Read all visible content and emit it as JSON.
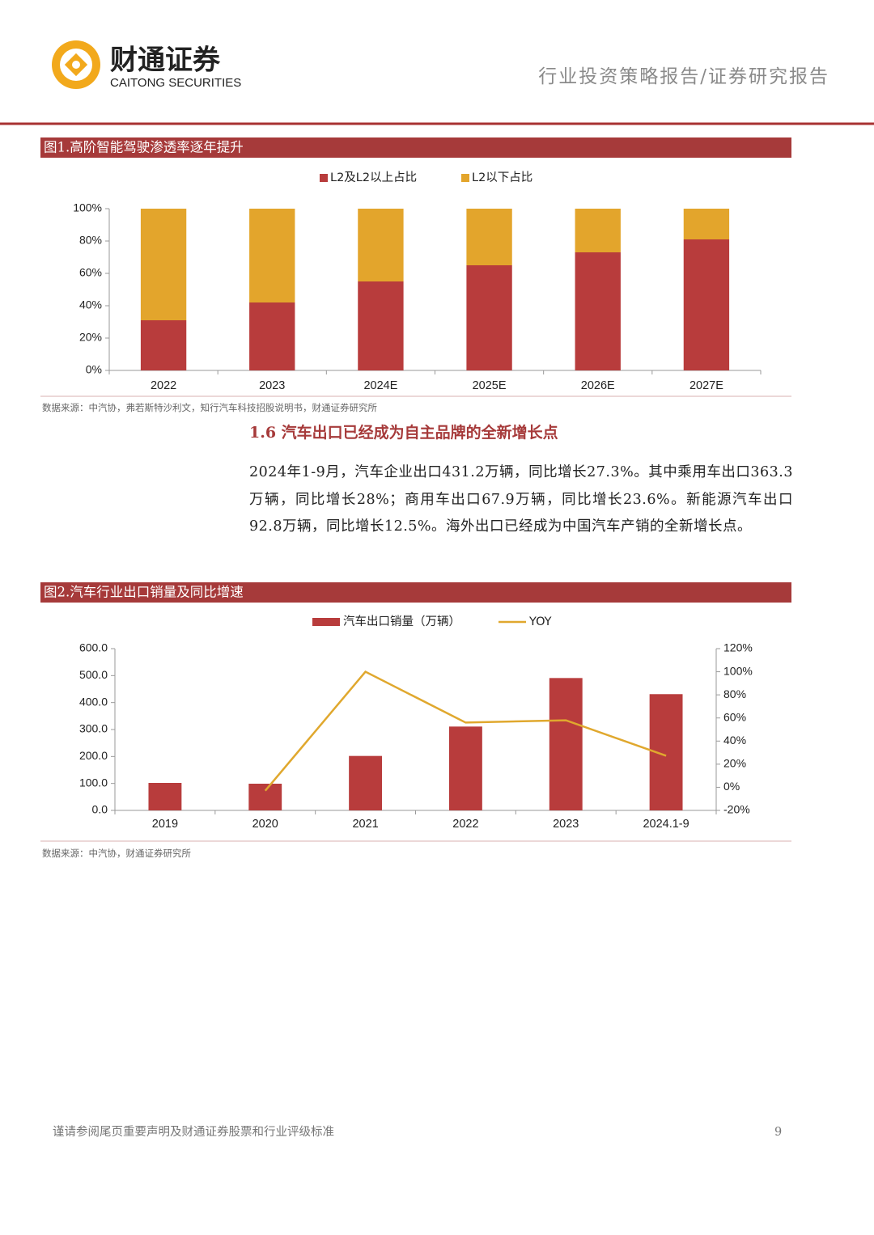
{
  "header": {
    "logo_cn": "财通证券",
    "logo_en": "CAITONG SECURITIES",
    "report_type": "行业投资策略报告/证券研究报告"
  },
  "figures": [
    {
      "title": "图1.高阶智能驾驶渗透率逐年提升",
      "source": "数据来源：中汽协，弗若斯特沙利文，知行汽车科技招股说明书，财通证券研究所"
    },
    {
      "title": "图2.汽车行业出口销量及同比增速",
      "source": "数据来源：中汽协，财通证券研究所"
    }
  ],
  "section": {
    "heading": "1.6 汽车出口已经成为自主品牌的全新增长点",
    "paragraph": "2024年1-9月，汽车企业出口431.2万辆，同比增长27.3%。其中乘用车出口363.3万辆，同比增长28%；商用车出口67.9万辆，同比增长23.6%。新能源汽车出口92.8万辆，同比增长12.5%。海外出口已经成为中国汽车产销的全新增长点。"
  },
  "footer": {
    "disclaimer": "谨请参阅尾页重要声明及财通证券股票和行业评级标准",
    "page": 9
  },
  "chart_data": [
    {
      "type": "bar",
      "stacked": true,
      "categories": [
        "2022",
        "2023",
        "2024E",
        "2025E",
        "2026E",
        "2027E"
      ],
      "series": [
        {
          "name": "L2及L2以上占比",
          "color": "#b83c3c",
          "values": [
            31,
            42,
            55,
            65,
            73,
            81
          ]
        },
        {
          "name": "L2以下占比",
          "color": "#e3a52c",
          "values": [
            69,
            58,
            45,
            35,
            27,
            19
          ]
        }
      ],
      "ylim": [
        0,
        100
      ],
      "yticks": [
        {
          "value": 0,
          "label": "0%"
        },
        {
          "value": 20,
          "label": "20%"
        },
        {
          "value": 40,
          "label": "40%"
        },
        {
          "value": 60,
          "label": "60%"
        },
        {
          "value": 80,
          "label": "80%"
        },
        {
          "value": 100,
          "label": "100%"
        }
      ],
      "legend": "top",
      "grid": false
    },
    {
      "type": "combo",
      "categories": [
        "2019",
        "2020",
        "2021",
        "2022",
        "2023",
        "2024.1-9"
      ],
      "series": [
        {
          "name": "汽车出口销量（万辆）",
          "color": "#b83c3c",
          "values": [
            102,
            99,
            202,
            311,
            491,
            431.2
          ]
        },
        {
          "name": "YOY",
          "color": "#e0a82e",
          "axis": "y2",
          "values": [
            null,
            -3,
            100,
            56,
            58,
            27.3
          ]
        }
      ],
      "ylim": [
        0,
        600
      ],
      "yticks": [
        {
          "value": 0,
          "label": "0.0"
        },
        {
          "value": 100,
          "label": "100.0"
        },
        {
          "value": 200,
          "label": "200.0"
        },
        {
          "value": 300,
          "label": "300.0"
        },
        {
          "value": 400,
          "label": "400.0"
        },
        {
          "value": 500,
          "label": "500.0"
        },
        {
          "value": 600,
          "label": "600.0"
        }
      ],
      "y2lim": [
        -20,
        120
      ],
      "y2ticks": [
        {
          "value": -20,
          "label": "-20%"
        },
        {
          "value": 0,
          "label": "0%"
        },
        {
          "value": 20,
          "label": "20%"
        },
        {
          "value": 40,
          "label": "40%"
        },
        {
          "value": 60,
          "label": "60%"
        },
        {
          "value": 80,
          "label": "80%"
        },
        {
          "value": 100,
          "label": "100%"
        },
        {
          "value": 120,
          "label": "120%"
        }
      ],
      "legend": "top",
      "grid": false
    }
  ]
}
